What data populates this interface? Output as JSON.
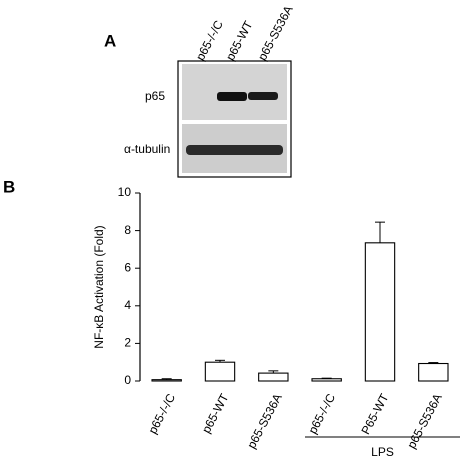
{
  "panel_a": {
    "label": "A",
    "lanes": [
      "p65-/-/C",
      "p65-WT",
      "p65-S536A"
    ],
    "rows": [
      "p65",
      "α-tubulin"
    ]
  },
  "chart_data": {
    "type": "bar",
    "panel_label": "B",
    "ylabel": "NF-κB Activation (Fold)",
    "categories": [
      "p65-/-/C",
      "p65-WT",
      "p65-S536A",
      "p65-/-/C",
      "P65-WT",
      "p65-S536A"
    ],
    "values": [
      0.07,
      1.0,
      0.42,
      0.12,
      7.35,
      0.93
    ],
    "errors": [
      0.05,
      0.1,
      0.12,
      0.03,
      1.1,
      0.05
    ],
    "color": "#ffffff",
    "edgecolor": "#000000",
    "ylim": [
      0,
      10
    ],
    "yticks": [
      0,
      2,
      4,
      6,
      8,
      10
    ],
    "group_label": "LPS"
  }
}
